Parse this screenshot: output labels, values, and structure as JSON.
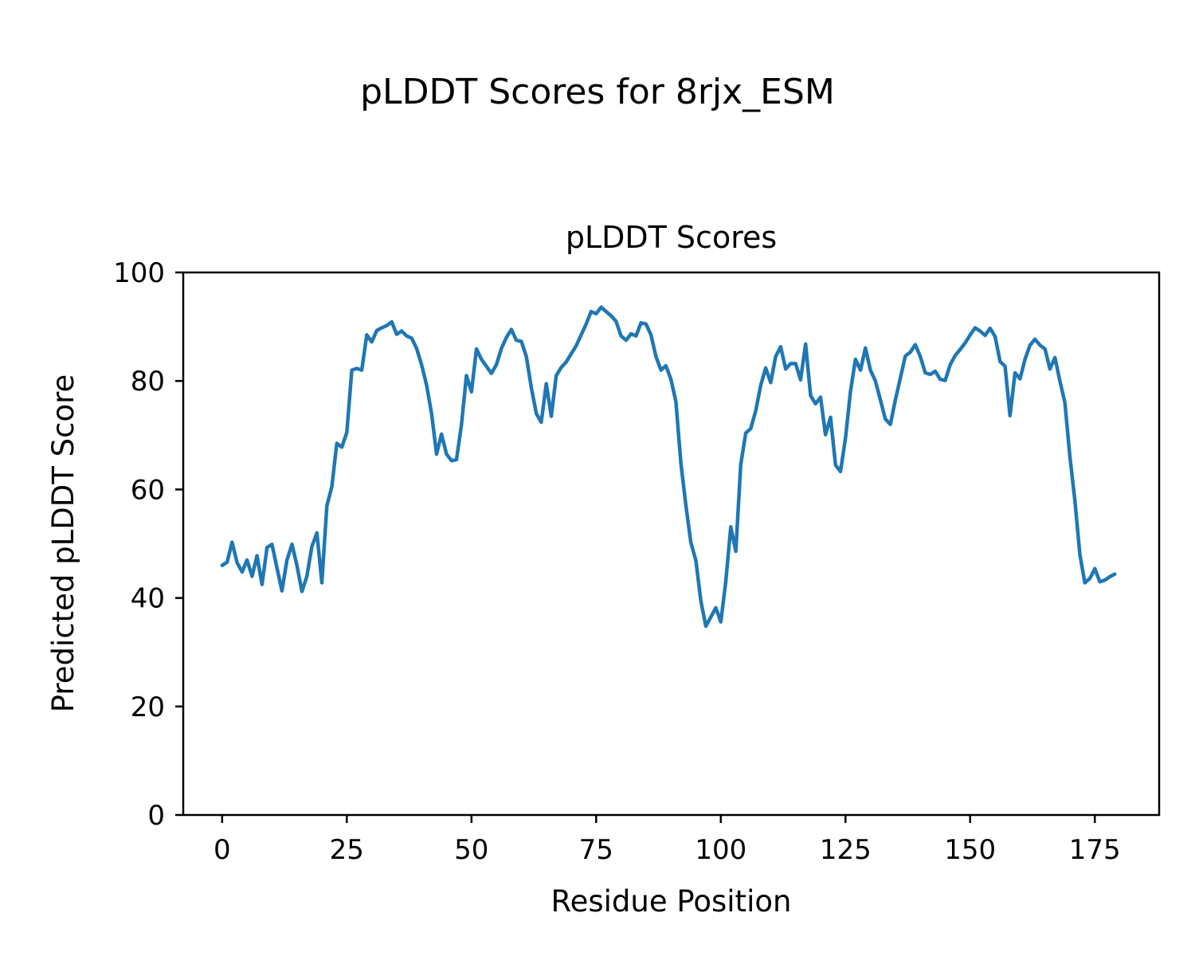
{
  "chart_data": {
    "type": "line",
    "suptitle": "pLDDT Scores for 8rjx_ESM",
    "title": "pLDDT Scores",
    "xlabel": "Residue Position",
    "ylabel": "Predicted pLDDT Score",
    "x_ticks": [
      0,
      25,
      50,
      75,
      100,
      125,
      150,
      175
    ],
    "y_ticks": [
      0,
      20,
      40,
      60,
      80,
      100
    ],
    "xlim": [
      -7.8,
      187.9
    ],
    "ylim": [
      0,
      100
    ],
    "grid": false,
    "legend": "none",
    "line_color": "#1f77b4",
    "line_width": 4.5,
    "x_start": 0,
    "x_step": 1,
    "x_series_label": "Residue Position",
    "y_series_label": "Predicted pLDDT Score",
    "values": [
      46.0,
      46.6,
      50.3,
      46.5,
      44.8,
      47.0,
      44.0,
      47.8,
      42.5,
      49.3,
      49.9,
      45.5,
      41.3,
      47.0,
      49.9,
      46.0,
      41.2,
      44.0,
      49.5,
      52.0,
      42.8,
      57.0,
      60.5,
      68.5,
      67.8,
      70.5,
      82.0,
      82.3,
      82.0,
      88.5,
      87.2,
      89.3,
      89.8,
      90.2,
      90.9,
      88.6,
      89.2,
      88.3,
      87.9,
      86.0,
      83.0,
      79.2,
      74.0,
      66.5,
      70.2,
      66.5,
      65.3,
      65.5,
      72.0,
      81.0,
      78.0,
      85.9,
      84.0,
      82.7,
      81.4,
      83.0,
      86.0,
      88.0,
      89.5,
      87.5,
      87.3,
      84.5,
      78.8,
      74.0,
      72.4,
      79.5,
      73.5,
      81.0,
      82.5,
      83.5,
      85.0,
      86.5,
      88.5,
      90.5,
      92.8,
      92.4,
      93.6,
      92.8,
      92.0,
      91.0,
      88.3,
      87.5,
      88.7,
      88.3,
      90.7,
      90.5,
      88.5,
      84.5,
      82.0,
      82.8,
      80.3,
      76.2,
      64.8,
      57.0,
      50.2,
      46.9,
      39.5,
      34.8,
      36.5,
      38.2,
      35.6,
      43.0,
      53.1,
      48.6,
      64.6,
      70.4,
      71.2,
      74.5,
      79.2,
      82.4,
      79.7,
      84.5,
      86.3,
      82.2,
      83.2,
      83.2,
      80.2,
      86.8,
      77.3,
      75.8,
      77.0,
      70.1,
      73.3,
      64.5,
      63.3,
      69.5,
      78.0,
      84.0,
      82.0,
      86.1,
      82.0,
      80.0,
      76.5,
      73.0,
      72.0,
      76.5,
      80.5,
      84.6,
      85.3,
      86.7,
      84.5,
      81.5,
      81.2,
      81.8,
      80.3,
      80.1,
      83.0,
      84.7,
      85.8,
      87.0,
      88.5,
      89.8,
      89.2,
      88.4,
      89.7,
      88.2,
      83.6,
      82.7,
      73.6,
      81.5,
      80.4,
      84.0,
      86.6,
      87.7,
      86.6,
      85.9,
      82.2,
      84.3,
      80.0,
      76.0,
      66.0,
      58.0,
      48.0,
      42.8,
      43.6,
      45.4,
      43.0,
      43.3,
      43.9,
      44.4
    ]
  }
}
